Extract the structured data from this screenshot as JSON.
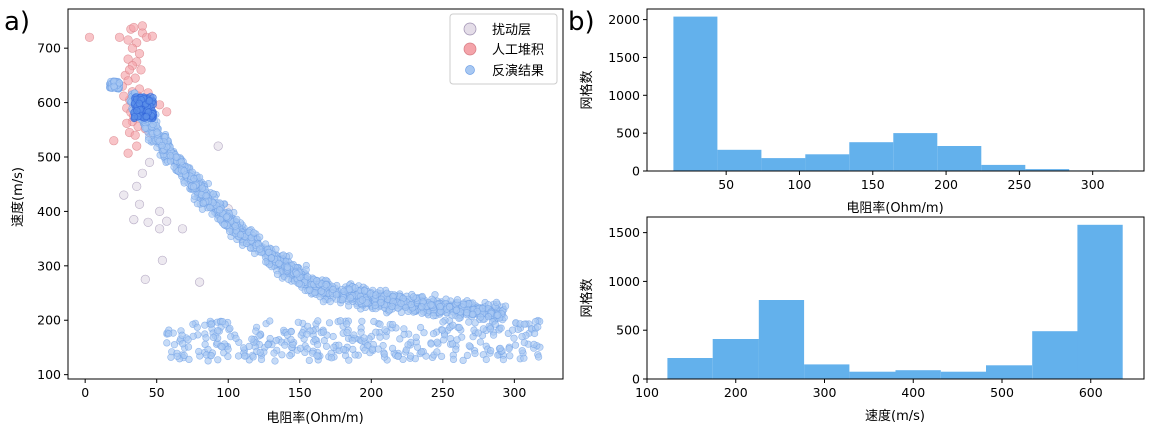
{
  "chart_data": [
    {
      "panel_label": "a)",
      "type": "scatter",
      "xlabel": "电阻率(Ohm/m)",
      "ylabel": "速度(m/s)",
      "xlim": [
        -12,
        334
      ],
      "ylim": [
        92,
        772
      ],
      "xticks": [
        0,
        50,
        100,
        150,
        200,
        250,
        300
      ],
      "yticks": [
        100,
        200,
        300,
        400,
        500,
        600,
        700
      ],
      "legend_position": "top-right",
      "series": [
        {
          "name": "扰动层",
          "color": "#e4dde8",
          "edge": "#9d8fb0",
          "size": 7,
          "points": [
            [
              93,
              520
            ],
            [
              36,
              446
            ],
            [
              38,
              413
            ],
            [
              34,
              385
            ],
            [
              44,
              380
            ],
            [
              52,
              400
            ],
            [
              57,
              382
            ],
            [
              52,
              368
            ],
            [
              68,
              368
            ],
            [
              27,
              430
            ],
            [
              54,
              310
            ],
            [
              80,
              270
            ],
            [
              42,
              275
            ],
            [
              100,
              405
            ],
            [
              48,
              545
            ],
            [
              40,
              470
            ],
            [
              45,
              490
            ]
          ]
        },
        {
          "name": "人工堆积",
          "color": "#f4a4aa",
          "edge": "#d77a82",
          "size": 7,
          "points": [
            [
              3,
              720
            ],
            [
              32,
              735
            ],
            [
              34,
              738
            ],
            [
              40,
              728
            ],
            [
              43,
              720
            ],
            [
              30,
              715
            ],
            [
              36,
              710
            ],
            [
              33,
              700
            ],
            [
              38,
              690
            ],
            [
              30,
              680
            ],
            [
              36,
              675
            ],
            [
              33,
              668
            ],
            [
              39,
              660
            ],
            [
              28,
              650
            ],
            [
              35,
              645
            ],
            [
              30,
              640
            ],
            [
              26,
              630
            ],
            [
              38,
              625
            ],
            [
              33,
              620
            ],
            [
              44,
              618
            ],
            [
              37,
              612
            ],
            [
              31,
              605
            ],
            [
              41,
              600
            ],
            [
              34,
              595
            ],
            [
              29,
              590
            ],
            [
              39,
              588
            ],
            [
              47,
              597
            ],
            [
              52,
              596
            ],
            [
              57,
              583
            ],
            [
              32,
              582
            ],
            [
              38,
              578
            ],
            [
              35,
              572
            ],
            [
              33,
              565
            ],
            [
              29,
              562
            ],
            [
              37,
              556
            ],
            [
              42,
              552
            ],
            [
              31,
              545
            ],
            [
              35,
              540
            ],
            [
              20,
              530
            ],
            [
              30,
              507
            ],
            [
              36,
              520
            ],
            [
              45,
              545
            ],
            [
              24,
              720
            ],
            [
              40,
              741
            ],
            [
              47,
              722
            ],
            [
              27,
              612
            ],
            [
              31,
              660
            ],
            [
              34,
              575
            ],
            [
              37,
              598
            ]
          ]
        },
        {
          "name": "反演结果",
          "color": "#a8c8f2",
          "edge": "#6fa0e6",
          "size": 5,
          "generator": {
            "seed": 7,
            "curve": [
              [
                34,
                610
              ],
              [
                38,
                590
              ],
              [
                45,
                560
              ],
              [
                55,
                520
              ],
              [
                70,
                470
              ],
              [
                90,
                410
              ],
              [
                110,
                360
              ],
              [
                130,
                315
              ],
              [
                150,
                280
              ],
              [
                165,
                258
              ],
              [
                185,
                245
              ],
              [
                205,
                238
              ],
              [
                225,
                232
              ],
              [
                245,
                226
              ],
              [
                275,
                218
              ],
              [
                292,
                212
              ]
            ],
            "curve_count": 1400,
            "curve_spread_x": 10,
            "curve_spread_y": 14,
            "curve_xmin": 34,
            "curve_xmax": 292,
            "low_band": {
              "count": 380,
              "xmin": 55,
              "xmax": 318,
              "ymin": 125,
              "ymax": 200
            },
            "cluster_count": 60,
            "cluster_x": [
              17,
              24
            ],
            "cluster_y": [
              625,
              640
            ]
          }
        }
      ]
    },
    {
      "panel_label": "b)",
      "type": "bar",
      "xlabel": "电阻率(Ohm/m)",
      "ylabel": "网格数",
      "xlim": [
        -4,
        335
      ],
      "ylim": [
        0,
        2140
      ],
      "xticks": [
        50,
        100,
        150,
        200,
        250,
        300
      ],
      "yticks": [
        0,
        500,
        1000,
        1500,
        2000
      ],
      "color": "#63b1ec",
      "bins": [
        [
          14,
          44,
          2040
        ],
        [
          44,
          74,
          280
        ],
        [
          74,
          104,
          170
        ],
        [
          104,
          134,
          220
        ],
        [
          134,
          164,
          380
        ],
        [
          164,
          194,
          500
        ],
        [
          194,
          224,
          330
        ],
        [
          224,
          254,
          80
        ],
        [
          254,
          284,
          25
        ],
        [
          284,
          318,
          8
        ]
      ]
    },
    {
      "type": "bar",
      "xlabel": "速度(m/s)",
      "ylabel": "网格数",
      "xlim": [
        100,
        660
      ],
      "ylim": [
        0,
        1660
      ],
      "xticks": [
        100,
        200,
        300,
        400,
        500,
        600
      ],
      "yticks": [
        0,
        500,
        1000,
        1500
      ],
      "color": "#63b1ec",
      "bins": [
        [
          123,
          174,
          215
        ],
        [
          174,
          226,
          410
        ],
        [
          226,
          277,
          810
        ],
        [
          277,
          328,
          150
        ],
        [
          328,
          380,
          75
        ],
        [
          380,
          431,
          90
        ],
        [
          431,
          482,
          75
        ],
        [
          482,
          534,
          140
        ],
        [
          534,
          585,
          490
        ],
        [
          585,
          636,
          1580
        ]
      ]
    }
  ]
}
